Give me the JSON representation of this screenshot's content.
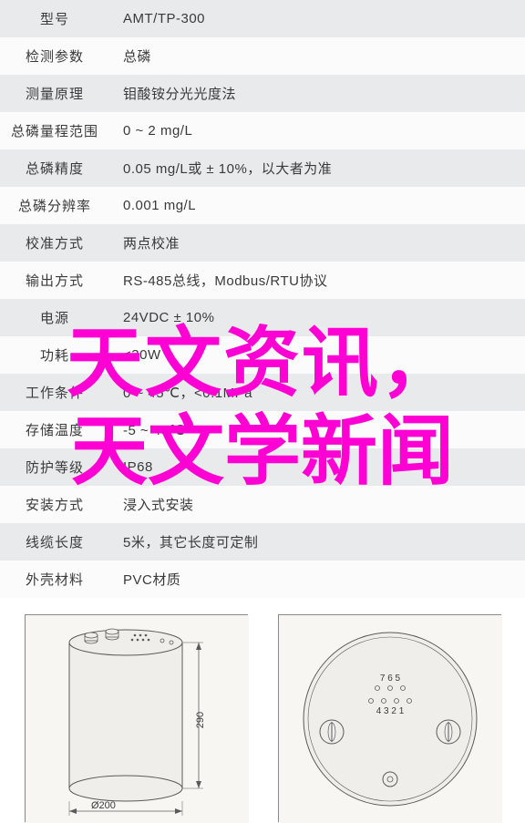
{
  "table": {
    "header_bg_odd": "#e8eaec",
    "header_bg_even": "#fbfbfb",
    "text_color": "#3a3a3a",
    "rows": [
      {
        "label": "型号",
        "value": "AMT/TP-300"
      },
      {
        "label": "检测参数",
        "value": "总磷"
      },
      {
        "label": "测量原理",
        "value": "钼酸铵分光光度法"
      },
      {
        "label": "总磷量程范围",
        "value": "0 ~ 2 mg/L"
      },
      {
        "label": "总磷精度",
        "value": "0.05 mg/L或 ± 10%，以大者为准"
      },
      {
        "label": "总磷分辨率",
        "value": "0.001 mg/L"
      },
      {
        "label": "校准方式",
        "value": "两点校准"
      },
      {
        "label": "输出方式",
        "value": "RS-485总线，Modbus/RTU协议"
      },
      {
        "label": "电源",
        "value": "24VDC ± 10%"
      },
      {
        "label": "功耗",
        "value": "<30W"
      },
      {
        "label": "工作条件",
        "value": "0 ~ 45℃，<0.1MPa"
      },
      {
        "label": "存储温度",
        "value": "-5 ~ 45℃"
      },
      {
        "label": "防护等级",
        "value": "IP68"
      },
      {
        "label": "安装方式",
        "value": "浸入式安装"
      },
      {
        "label": "线缆长度",
        "value": "5米，其它长度可定制"
      },
      {
        "label": "外壳材料",
        "value": "PVC材质"
      }
    ]
  },
  "diagrams": {
    "side_view": {
      "bg": "#f7f6f3",
      "stroke": "#5a5a5a",
      "fill": "#efeeea",
      "dim_height_label": "290",
      "dim_width_label": "Ø200",
      "connectors": 2,
      "top_holes": 8
    },
    "top_view": {
      "bg": "#f7f6f3",
      "stroke": "#5a5a5a",
      "fill": "#efeeea",
      "terminal_labels_top": "7  6  5",
      "terminal_labels_bottom": "4  3  2  1",
      "terminal_top_count": 3,
      "terminal_bottom_count": 4,
      "side_knobs": 2,
      "bottom_port": 1
    }
  },
  "overlay": {
    "line1": "天文资讯，",
    "line2": "天文学新闻",
    "color": "#ff00d4",
    "font_size": 84,
    "font_weight": 700
  }
}
